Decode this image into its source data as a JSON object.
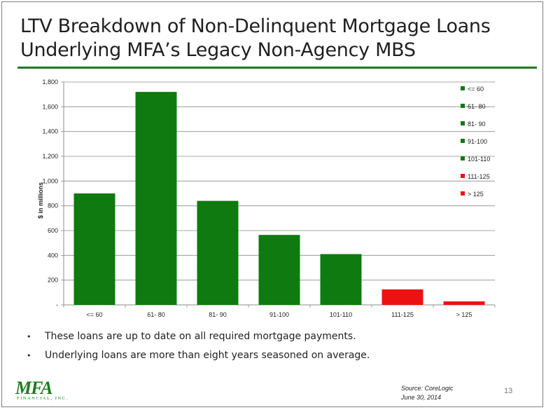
{
  "slide": {
    "title_line1": "LTV Breakdown of Non-Delinquent Mortgage Loans",
    "title_line2": "Underlying MFA’s Legacy Non-Agency MBS",
    "bullets": [
      "These loans are up to date on all required mortgage payments.",
      "Underlying loans are more than eight years seasoned on average."
    ],
    "bullet_glyph": "•",
    "source_line1": "Source: CoreLogic",
    "source_line2": "June 30, 2014",
    "page_number": "13",
    "logo_text": "MFA",
    "logo_subtext": "FINANCIAL, INC."
  },
  "colors": {
    "green": "#0f7a0f",
    "red": "#ee1111",
    "rule": "#1e7b1e"
  },
  "chart_data": {
    "type": "bar",
    "title": "",
    "xlabel": "",
    "ylabel": "$ in millions",
    "categories": [
      "<= 60",
      "61- 80",
      "81- 90",
      "91-100",
      "101-110",
      "111-125",
      "> 125"
    ],
    "values": [
      900,
      1720,
      840,
      565,
      410,
      125,
      28
    ],
    "bar_colors": [
      "#0f7a0f",
      "#0f7a0f",
      "#0f7a0f",
      "#0f7a0f",
      "#0f7a0f",
      "#ee1111",
      "#ee1111"
    ],
    "ylim": [
      0,
      1800
    ],
    "yticks": [
      0,
      200,
      400,
      600,
      800,
      1000,
      1200,
      1400,
      1600,
      1800
    ],
    "ytick_labels": [
      "-",
      "200",
      "400",
      "600",
      "800",
      "1,000",
      "1,200",
      "1,400",
      "1,600",
      "1,800"
    ],
    "grid": true,
    "legend_position": "right",
    "legend": [
      {
        "label": "<= 60",
        "color": "#0f7a0f"
      },
      {
        "label": "61- 80",
        "color": "#0f7a0f"
      },
      {
        "label": "81- 90",
        "color": "#0f7a0f"
      },
      {
        "label": "91-100",
        "color": "#0f7a0f"
      },
      {
        "label": "101-110",
        "color": "#0f7a0f"
      },
      {
        "label": "111-125",
        "color": "#ee1111"
      },
      {
        "label": "> 125",
        "color": "#ee1111"
      }
    ]
  }
}
